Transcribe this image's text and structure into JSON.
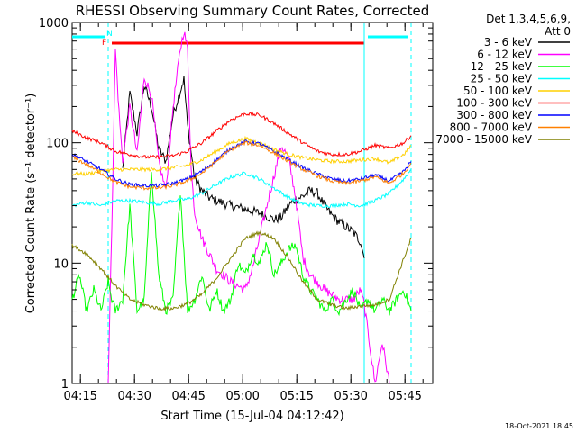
{
  "chart_data": {
    "type": "line",
    "title": "RHESSI Observing Summary Count Rates, Corrected",
    "xlabel": "Start Time (15-Jul-04 04:12:42)",
    "ylabel": "Corrected Count Rate (s⁻¹ detector⁻¹)",
    "x_unit": "minutes after 04:12:42",
    "xlim": [
      0,
      100
    ],
    "ylim": [
      1,
      1000
    ],
    "y_scale": "log",
    "x_ticks": [
      {
        "t": 2.3,
        "label": "04:15"
      },
      {
        "t": 17.3,
        "label": "04:30"
      },
      {
        "t": 32.3,
        "label": "04:45"
      },
      {
        "t": 47.3,
        "label": "05:00"
      },
      {
        "t": 62.3,
        "label": "05:15"
      },
      {
        "t": 77.3,
        "label": "05:30"
      },
      {
        "t": 92.3,
        "label": "05:45"
      }
    ],
    "y_ticks": [
      {
        "v": 1,
        "label": "1"
      },
      {
        "v": 10,
        "label": "10"
      },
      {
        "v": 100,
        "label": "100"
      },
      {
        "v": 1000,
        "label": "1000"
      }
    ],
    "legend": {
      "header": [
        "Det 1,3,4,5,6,9,",
        "Att 0"
      ],
      "placement": "right"
    },
    "flags": [
      {
        "label": "N",
        "color": "#00ffff",
        "segments": [
          [
            0,
            9
          ],
          [
            82,
            93
          ]
        ]
      },
      {
        "label": "F",
        "color": "#ff0000",
        "segments": [
          [
            11,
            81
          ]
        ]
      }
    ],
    "vlines": [
      {
        "t": 10,
        "color": "#00ffff",
        "style": "dashed"
      },
      {
        "t": 81,
        "color": "#00ffff",
        "style": "solid"
      },
      {
        "t": 94,
        "color": "#00ffff",
        "style": "dashed"
      }
    ],
    "series": [
      {
        "name": "3 - 6 keV",
        "color": "#000000",
        "x": [
          14,
          16,
          18,
          20,
          22,
          24,
          26,
          28,
          30,
          31,
          32,
          34,
          36,
          38,
          40,
          44,
          48,
          52,
          56,
          58,
          60,
          62,
          64,
          66,
          68,
          70,
          72,
          74,
          76,
          78,
          80,
          81
        ],
        "y": [
          60,
          260,
          120,
          300,
          200,
          90,
          70,
          170,
          270,
          340,
          140,
          50,
          40,
          35,
          33,
          30,
          28,
          26,
          23,
          24,
          30,
          34,
          36,
          40,
          38,
          30,
          25,
          22,
          20,
          18,
          15,
          11
        ]
      },
      {
        "name": "6 - 12 keV",
        "color": "#ff00ff",
        "x": [
          10,
          11,
          12,
          13,
          14,
          16,
          18,
          20,
          22,
          24,
          26,
          28,
          30,
          31,
          32,
          33,
          34,
          36,
          38,
          40,
          44,
          48,
          50,
          54,
          58,
          60,
          62,
          64,
          66,
          68,
          70,
          74,
          78,
          80,
          81,
          84,
          86,
          88
        ],
        "y": [
          1,
          20,
          600,
          180,
          70,
          200,
          80,
          350,
          250,
          70,
          40,
          200,
          600,
          850,
          600,
          60,
          26,
          16,
          12,
          9,
          7,
          6,
          9,
          30,
          95,
          75,
          35,
          11,
          8,
          7,
          6,
          5,
          5,
          6,
          4.5,
          1,
          2.2,
          1
        ]
      },
      {
        "name": "12 - 25 keV",
        "color": "#00ff00",
        "x": [
          0,
          2,
          4,
          6,
          8,
          10,
          11,
          12,
          14,
          16,
          18,
          20,
          22,
          24,
          26,
          28,
          30,
          32,
          34,
          36,
          38,
          40,
          42,
          44,
          46,
          48,
          50,
          52,
          54,
          56,
          58,
          60,
          62,
          64,
          66,
          68,
          70,
          72,
          74,
          76,
          78,
          80,
          82,
          84,
          86,
          88,
          90,
          92,
          94
        ],
        "y": [
          5,
          8,
          4,
          6,
          4,
          7,
          5,
          4,
          5,
          30,
          4,
          5,
          60,
          8,
          4,
          5,
          40,
          4,
          5,
          8,
          4,
          6,
          4,
          5,
          10,
          8,
          12,
          10,
          15,
          8,
          10,
          13,
          14,
          8,
          6,
          5,
          4,
          5,
          4,
          5,
          6,
          4,
          5,
          4,
          5,
          4,
          5,
          6,
          4
        ]
      },
      {
        "name": "25 - 50 keV",
        "color": "#00ffff",
        "x": [
          0,
          4,
          8,
          12,
          16,
          20,
          24,
          28,
          32,
          36,
          40,
          44,
          48,
          52,
          56,
          60,
          64,
          68,
          72,
          76,
          80,
          84,
          88,
          92,
          94
        ],
        "y": [
          30,
          32,
          30,
          33,
          33,
          32,
          31,
          33,
          34,
          38,
          45,
          52,
          56,
          50,
          42,
          35,
          31,
          30,
          30,
          31,
          30,
          33,
          38,
          50,
          60
        ]
      },
      {
        "name": "50 - 100 keV",
        "color": "#ffd000",
        "x": [
          0,
          4,
          8,
          12,
          16,
          20,
          24,
          28,
          32,
          36,
          40,
          44,
          48,
          52,
          56,
          60,
          64,
          68,
          72,
          76,
          80,
          84,
          88,
          92,
          94
        ],
        "y": [
          55,
          55,
          58,
          60,
          60,
          60,
          60,
          62,
          65,
          72,
          85,
          100,
          108,
          100,
          88,
          80,
          75,
          72,
          70,
          70,
          72,
          74,
          68,
          80,
          95
        ]
      },
      {
        "name": "100 - 300 keV",
        "color": "#ff0000",
        "x": [
          0,
          4,
          8,
          12,
          16,
          20,
          24,
          28,
          32,
          36,
          40,
          44,
          48,
          52,
          56,
          60,
          64,
          68,
          72,
          76,
          80,
          84,
          88,
          92,
          94
        ],
        "y": [
          125,
          110,
          100,
          85,
          80,
          76,
          76,
          78,
          85,
          100,
          125,
          155,
          175,
          170,
          145,
          120,
          100,
          85,
          80,
          80,
          85,
          95,
          90,
          100,
          115
        ]
      },
      {
        "name": "300 - 800 keV",
        "color": "#0000ff",
        "x": [
          0,
          4,
          8,
          12,
          16,
          20,
          24,
          28,
          32,
          36,
          40,
          44,
          48,
          52,
          56,
          60,
          64,
          68,
          72,
          76,
          80,
          84,
          88,
          92,
          94
        ],
        "y": [
          80,
          70,
          60,
          50,
          45,
          44,
          44,
          46,
          50,
          58,
          72,
          90,
          102,
          98,
          85,
          72,
          62,
          55,
          50,
          48,
          50,
          54,
          48,
          58,
          70
        ]
      },
      {
        "name": "800 - 7000 keV",
        "color": "#ff8000",
        "x": [
          0,
          4,
          8,
          12,
          16,
          20,
          24,
          28,
          32,
          36,
          40,
          44,
          48,
          52,
          56,
          60,
          64,
          68,
          72,
          76,
          80,
          84,
          88,
          92,
          94
        ],
        "y": [
          76,
          66,
          56,
          47,
          43,
          42,
          42,
          44,
          48,
          56,
          70,
          88,
          100,
          95,
          82,
          70,
          60,
          53,
          48,
          46,
          48,
          52,
          46,
          56,
          68
        ]
      },
      {
        "name": "7000 - 15000 keV",
        "color": "#808000",
        "x": [
          0,
          4,
          8,
          12,
          16,
          20,
          24,
          28,
          32,
          36,
          40,
          44,
          48,
          52,
          56,
          60,
          64,
          68,
          72,
          76,
          80,
          84,
          88,
          92,
          94
        ],
        "y": [
          14,
          12,
          9,
          6.5,
          5,
          4.5,
          4.2,
          4.2,
          4.6,
          5.5,
          7.5,
          11,
          16,
          18,
          16,
          11,
          7,
          5,
          4.5,
          4.2,
          4.4,
          4.5,
          5,
          11,
          16
        ]
      }
    ]
  },
  "footer": {
    "date": "18-Oct-2021 18:45"
  }
}
